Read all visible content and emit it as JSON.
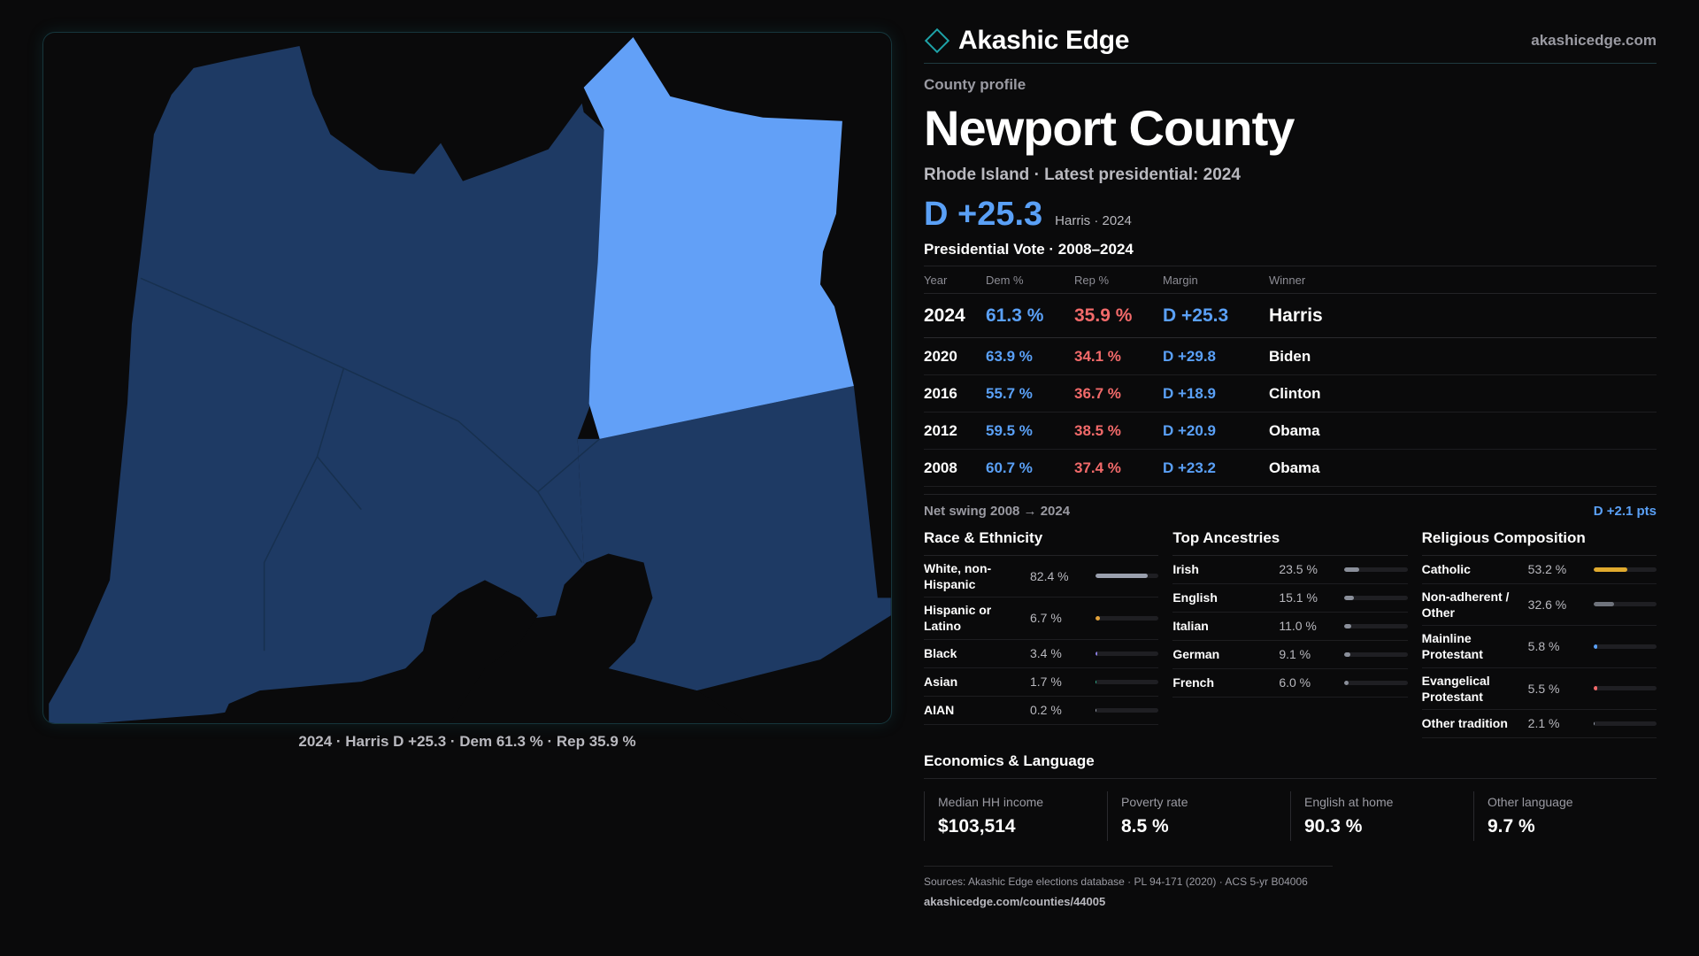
{
  "brand": {
    "name": "Akashic Edge",
    "url": "akashicedge.com"
  },
  "profile": {
    "kicker": "County profile",
    "title": "Newport County",
    "subtitle": "Rhode Island · Latest presidential: 2024",
    "margin": "D +25.3",
    "margin_note": "Harris · 2024"
  },
  "map": {
    "caption": "2024 · Harris D +25.3 · Dem 61.3 % · Rep 35.9 %",
    "colors": {
      "dark_blue": "#1e3a64",
      "light_blue": "#62a0f7",
      "water": "#0a0a0b"
    }
  },
  "votes": {
    "heading": "Presidential Vote · 2008–2024",
    "headers": {
      "year": "Year",
      "dem": "Dem %",
      "rep": "Rep %",
      "margin": "Margin",
      "winner": "Winner"
    },
    "rows": [
      {
        "year": "2024",
        "dem": "61.3 %",
        "rep": "35.9 %",
        "margin": "D +25.3",
        "winner": "Harris"
      },
      {
        "year": "2020",
        "dem": "63.9 %",
        "rep": "34.1 %",
        "margin": "D +29.8",
        "winner": "Biden"
      },
      {
        "year": "2016",
        "dem": "55.7 %",
        "rep": "36.7 %",
        "margin": "D +18.9",
        "winner": "Clinton"
      },
      {
        "year": "2012",
        "dem": "59.5 %",
        "rep": "38.5 %",
        "margin": "D +20.9",
        "winner": "Obama"
      },
      {
        "year": "2008",
        "dem": "60.7 %",
        "rep": "37.4 %",
        "margin": "D +23.2",
        "winner": "Obama"
      }
    ],
    "swing_label": "Net swing 2008 → 2024",
    "swing_value": "D +2.1 pts"
  },
  "race": {
    "heading": "Race & Ethnicity",
    "items": [
      {
        "label": "White, non-Hispanic",
        "value": "82.4 %",
        "pct": 82.4,
        "color": "#9aa0ae"
      },
      {
        "label": "Hispanic or Latino",
        "value": "6.7 %",
        "pct": 6.7,
        "color": "#e3a23a"
      },
      {
        "label": "Black",
        "value": "3.4 %",
        "pct": 3.4,
        "color": "#8b7ee0"
      },
      {
        "label": "Asian",
        "value": "1.7 %",
        "pct": 1.7,
        "color": "#2fb38f"
      },
      {
        "label": "AIAN",
        "value": "0.2 %",
        "pct": 0.2,
        "color": "#9aa0ae"
      }
    ]
  },
  "ancestry": {
    "heading": "Top Ancestries",
    "items": [
      {
        "label": "Irish",
        "value": "23.5 %",
        "pct": 23.5,
        "color": "#8a8f9a"
      },
      {
        "label": "English",
        "value": "15.1 %",
        "pct": 15.1,
        "color": "#8a8f9a"
      },
      {
        "label": "Italian",
        "value": "11.0 %",
        "pct": 11.0,
        "color": "#8a8f9a"
      },
      {
        "label": "German",
        "value": "9.1 %",
        "pct": 9.1,
        "color": "#8a8f9a"
      },
      {
        "label": "French",
        "value": "6.0 %",
        "pct": 6.0,
        "color": "#8a8f9a"
      }
    ]
  },
  "religion": {
    "heading": "Religious Composition",
    "items": [
      {
        "label": "Catholic",
        "value": "53.2 %",
        "pct": 53.2,
        "color": "#e0aa2e"
      },
      {
        "label": "Non-adherent / Other",
        "value": "32.6 %",
        "pct": 32.6,
        "color": "#6f737c"
      },
      {
        "label": "Mainline Protestant",
        "value": "5.8 %",
        "pct": 5.8,
        "color": "#5aa0f6"
      },
      {
        "label": "Evangelical Protestant",
        "value": "5.5 %",
        "pct": 5.5,
        "color": "#f26a6a"
      },
      {
        "label": "Other tradition",
        "value": "2.1 %",
        "pct": 2.1,
        "color": "#9aa0ae"
      }
    ]
  },
  "economics": {
    "heading": "Economics & Language",
    "cells": [
      {
        "label": "Median HH income",
        "value": "$103,514"
      },
      {
        "label": "Poverty rate",
        "value": "8.5 %"
      },
      {
        "label": "English at home",
        "value": "90.3 %"
      },
      {
        "label": "Other language",
        "value": "9.7 %"
      }
    ]
  },
  "sources": {
    "line1": "Sources: Akashic Edge elections database · PL 94-171 (2020) · ACS 5-yr B04006",
    "line2": "akashicedge.com/counties/44005"
  }
}
